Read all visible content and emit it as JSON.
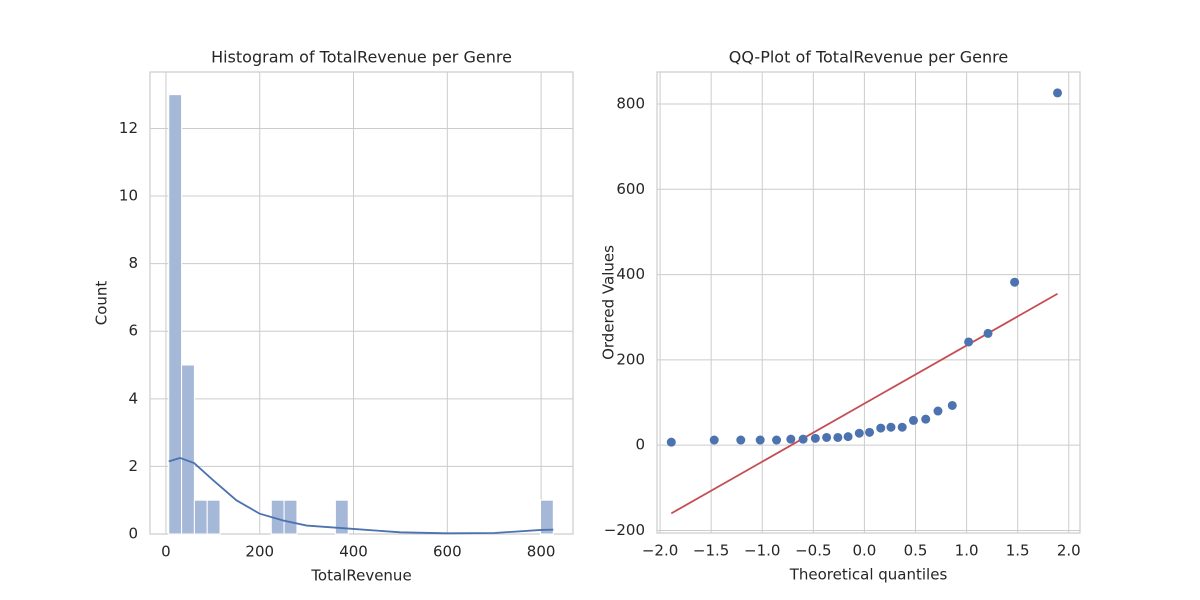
{
  "chart_data": [
    {
      "type": "histogram",
      "title": "Histogram of TotalRevenue per Genre",
      "x_label": "TotalRevenue",
      "y_label": "Count",
      "bins": [
        6,
        33.33,
        60.67,
        88,
        115.33,
        142.67,
        170,
        197.33,
        224.67,
        252,
        279.33,
        306.67,
        334,
        361.33,
        388.67,
        416,
        443.33,
        470.67,
        498,
        525.33,
        552.67,
        580,
        607.33,
        634.67,
        662,
        689.33,
        716.67,
        744,
        771.33,
        798.67,
        826
      ],
      "values": [
        13,
        5,
        1,
        1,
        0,
        0,
        0,
        0,
        1,
        1,
        0,
        0,
        0,
        1,
        0,
        0,
        0,
        0,
        0,
        0,
        0,
        0,
        0,
        0,
        0,
        0,
        0,
        0,
        0,
        1
      ],
      "color": "#a5b8d7",
      "kde": {
        "color": "#4c72b0",
        "x": [
          6,
          30,
          60,
          100,
          150,
          200,
          250,
          300,
          400,
          500,
          600,
          700,
          800,
          826
        ],
        "y": [
          2.15,
          2.25,
          2.1,
          1.6,
          1.0,
          0.6,
          0.4,
          0.25,
          0.15,
          0.05,
          0.02,
          0.03,
          0.12,
          0.13
        ]
      },
      "xlim": [
        -34,
        868
      ],
      "ylim": [
        0,
        13.67
      ],
      "xticks": [
        0,
        200,
        400,
        600,
        800
      ],
      "yticks": [
        0,
        2,
        4,
        6,
        8,
        10,
        12
      ],
      "grid": true
    },
    {
      "type": "scatter",
      "title": "QQ-Plot of TotalRevenue per Genre",
      "x_label": "Theoretical quantiles",
      "y_label": "Ordered Values",
      "x": [
        -1.89,
        -1.47,
        -1.21,
        -1.02,
        -0.86,
        -0.72,
        -0.6,
        -0.48,
        -0.37,
        -0.26,
        -0.16,
        -0.05,
        0.05,
        0.16,
        0.26,
        0.37,
        0.48,
        0.6,
        0.72,
        0.86,
        1.02,
        1.21,
        1.47,
        1.89
      ],
      "values": [
        7,
        12,
        12,
        12,
        12,
        14,
        14,
        16,
        18,
        18,
        20,
        28,
        30,
        40,
        42,
        42,
        58,
        61,
        80,
        93,
        242,
        262,
        382,
        826
      ],
      "color": "#4c72b0",
      "fit_line": {
        "color": "#c44e52",
        "x": [
          -1.89,
          1.89
        ],
        "y": [
          -160,
          355
        ]
      },
      "xlim": [
        -2.03,
        2.11
      ],
      "ylim": [
        -206,
        875
      ],
      "xticks": [
        {
          "value": -2,
          "label": "−2.0"
        },
        {
          "value": -1.5,
          "label": "−1.5"
        },
        {
          "value": -1,
          "label": "−1.0"
        },
        {
          "value": -0.5,
          "label": "−0.5"
        },
        {
          "value": 0,
          "label": "0.0"
        },
        0.5,
        {
          "value": 1,
          "label": "1.0"
        },
        1.5,
        {
          "value": 2,
          "label": "2.0"
        }
      ],
      "yticks": [
        {
          "value": -200,
          "label": "−200"
        },
        0,
        200,
        400,
        600,
        800
      ],
      "grid": true
    }
  ]
}
